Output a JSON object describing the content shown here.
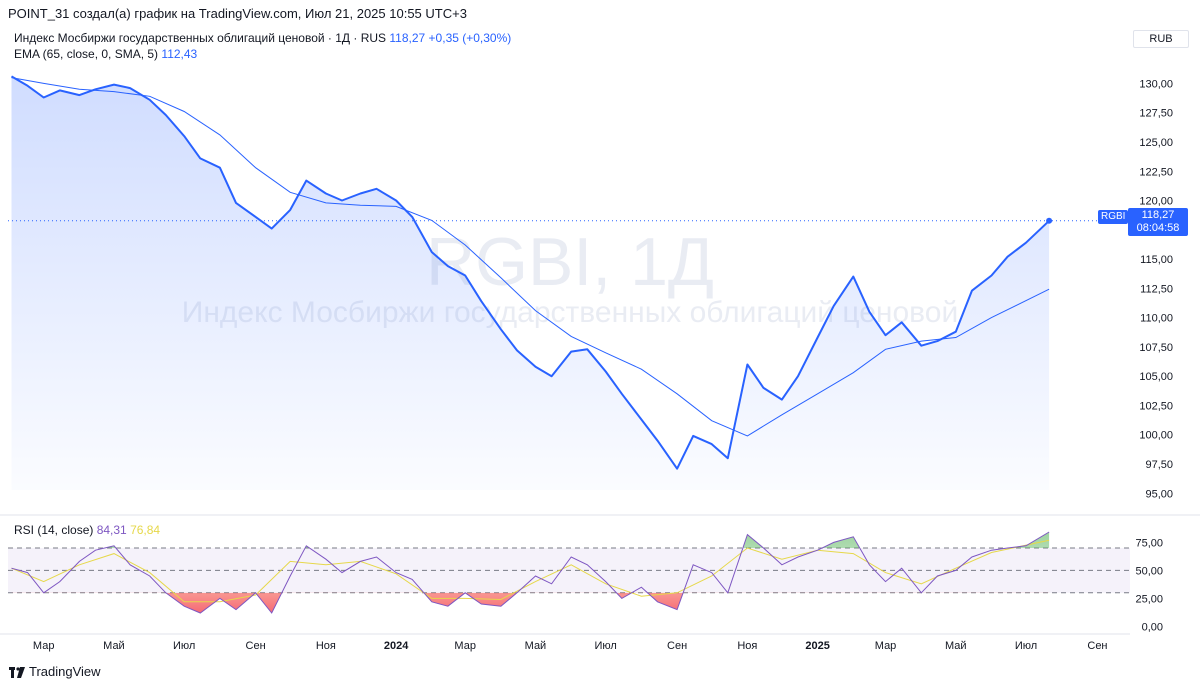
{
  "header": {
    "attribution": "POINT_31 создал(а) график на TradingView.com, Июл 21, 2025 10:55 UTC+3"
  },
  "legend": {
    "symbol_desc": "Индекс Мосбиржи государственных облигаций ценовой · 1Д · RUS",
    "last": "118,27",
    "change": "+0,35 (+0,30%)",
    "ema_label": "EMA (65, close, 0, SMA, 5)",
    "ema_value": "112,43",
    "rsi_label": "RSI (14, close)",
    "rsi_value": "84,31",
    "rsi_ma_value": "76,84"
  },
  "currency": "RUB",
  "price_label": {
    "symbol": "RGBI",
    "price": "118,27",
    "countdown": "08:04:58"
  },
  "watermark": {
    "symbol": "RGBI, 1Д",
    "name": "Индекс Мосбиржи государственных облигаций ценовой"
  },
  "footer": {
    "brand": "TradingView"
  },
  "colors": {
    "price_line": "#2962ff",
    "ema_line": "#2962ff",
    "rsi_line": "#7e57c2",
    "rsi_ma": "#e6d84a",
    "area_fill": "#dbe6ff"
  },
  "chart_data": [
    {
      "type": "area",
      "series": [
        {
          "name": "RGBI",
          "x": [
            "2023-02-01",
            "2023-02-15",
            "2023-03-01",
            "2023-03-15",
            "2023-04-01",
            "2023-04-15",
            "2023-05-01",
            "2023-05-15",
            "2023-06-01",
            "2023-06-15",
            "2023-07-01",
            "2023-07-15",
            "2023-08-01",
            "2023-08-15",
            "2023-09-01",
            "2023-09-15",
            "2023-10-01",
            "2023-10-15",
            "2023-11-01",
            "2023-11-15",
            "2023-12-01",
            "2023-12-15",
            "2024-01-01",
            "2024-01-15",
            "2024-02-01",
            "2024-02-15",
            "2024-03-01",
            "2024-03-15",
            "2024-04-01",
            "2024-04-15",
            "2024-05-01",
            "2024-05-15",
            "2024-06-01",
            "2024-06-15",
            "2024-07-01",
            "2024-07-15",
            "2024-08-01",
            "2024-08-15",
            "2024-09-01",
            "2024-09-15",
            "2024-10-01",
            "2024-10-15",
            "2024-11-01",
            "2024-11-15",
            "2024-12-01",
            "2024-12-15",
            "2025-01-01",
            "2025-01-15",
            "2025-02-01",
            "2025-02-15",
            "2025-03-01",
            "2025-03-15",
            "2025-04-01",
            "2025-04-15",
            "2025-05-01",
            "2025-05-15",
            "2025-06-01",
            "2025-06-15",
            "2025-07-01",
            "2025-07-21"
          ],
          "values": [
            130.6,
            129.8,
            128.8,
            129.4,
            129.0,
            129.5,
            129.9,
            129.6,
            128.6,
            127.3,
            125.5,
            123.6,
            122.8,
            119.8,
            118.6,
            117.6,
            119.2,
            121.7,
            120.6,
            120.0,
            120.6,
            121.0,
            120.0,
            118.6,
            115.6,
            114.4,
            113.6,
            111.4,
            109.0,
            107.2,
            105.8,
            105.0,
            107.1,
            107.3,
            105.4,
            103.5,
            101.3,
            99.5,
            97.1,
            99.9,
            99.2,
            98.0,
            106.0,
            104.0,
            103.0,
            105.0,
            108.3,
            111.0,
            113.5,
            110.5,
            108.5,
            109.6,
            107.6,
            108.0,
            108.8,
            112.3,
            113.6,
            115.2,
            116.4,
            118.27
          ]
        },
        {
          "name": "EMA",
          "x": [
            "2023-02-01",
            "2023-03-01",
            "2023-04-01",
            "2023-05-01",
            "2023-06-01",
            "2023-07-01",
            "2023-08-01",
            "2023-09-01",
            "2023-10-01",
            "2023-11-01",
            "2023-12-01",
            "2024-01-01",
            "2024-02-01",
            "2024-03-01",
            "2024-04-01",
            "2024-05-01",
            "2024-06-01",
            "2024-07-01",
            "2024-08-01",
            "2024-09-01",
            "2024-10-01",
            "2024-11-01",
            "2024-12-01",
            "2025-01-01",
            "2025-02-01",
            "2025-03-01",
            "2025-04-01",
            "2025-05-01",
            "2025-06-01",
            "2025-07-21"
          ],
          "values": [
            130.5,
            130.0,
            129.5,
            129.3,
            128.9,
            127.6,
            125.6,
            122.8,
            120.7,
            119.8,
            119.6,
            119.5,
            118.3,
            116.2,
            113.4,
            110.6,
            108.4,
            107.0,
            105.6,
            103.5,
            101.2,
            99.9,
            101.7,
            103.5,
            105.3,
            107.3,
            108.0,
            108.3,
            110.0,
            112.43
          ]
        }
      ],
      "ylim": [
        94,
        132
      ],
      "y_ticks": [
        "95,00",
        "97,50",
        "100,00",
        "102,50",
        "105,00",
        "107,50",
        "110,00",
        "112,50",
        "115,00",
        "117,50",
        "120,00",
        "122,50",
        "125,00",
        "127,50",
        "130,00"
      ],
      "grid": false
    },
    {
      "type": "line",
      "series": [
        {
          "name": "RSI",
          "x": [
            "2023-02-01",
            "2023-02-15",
            "2023-03-01",
            "2023-03-15",
            "2023-04-01",
            "2023-04-15",
            "2023-05-01",
            "2023-05-15",
            "2023-06-01",
            "2023-06-15",
            "2023-07-01",
            "2023-07-15",
            "2023-08-01",
            "2023-08-15",
            "2023-09-01",
            "2023-09-15",
            "2023-10-01",
            "2023-10-15",
            "2023-11-01",
            "2023-11-15",
            "2023-12-01",
            "2023-12-15",
            "2024-01-01",
            "2024-01-15",
            "2024-02-01",
            "2024-02-15",
            "2024-03-01",
            "2024-03-15",
            "2024-04-01",
            "2024-04-15",
            "2024-05-01",
            "2024-05-15",
            "2024-06-01",
            "2024-06-15",
            "2024-07-01",
            "2024-07-15",
            "2024-08-01",
            "2024-08-15",
            "2024-09-01",
            "2024-09-15",
            "2024-10-01",
            "2024-10-15",
            "2024-11-01",
            "2024-11-15",
            "2024-12-01",
            "2024-12-15",
            "2025-01-01",
            "2025-01-15",
            "2025-02-01",
            "2025-02-15",
            "2025-03-01",
            "2025-03-15",
            "2025-04-01",
            "2025-04-15",
            "2025-05-01",
            "2025-05-15",
            "2025-06-01",
            "2025-06-15",
            "2025-07-01",
            "2025-07-21"
          ],
          "values": [
            52,
            48,
            30,
            40,
            58,
            68,
            72,
            55,
            45,
            30,
            18,
            12,
            25,
            15,
            30,
            12,
            45,
            72,
            60,
            48,
            58,
            62,
            48,
            42,
            22,
            18,
            30,
            20,
            18,
            30,
            45,
            38,
            62,
            55,
            40,
            25,
            35,
            22,
            15,
            55,
            48,
            30,
            82,
            70,
            55,
            62,
            68,
            75,
            80,
            55,
            40,
            52,
            30,
            45,
            50,
            62,
            68,
            70,
            72,
            84.31
          ]
        },
        {
          "name": "RSI MA",
          "x": [
            "2023-02-01",
            "2023-03-01",
            "2023-04-01",
            "2023-05-01",
            "2023-06-01",
            "2023-07-01",
            "2023-08-01",
            "2023-09-01",
            "2023-10-01",
            "2023-11-01",
            "2023-12-01",
            "2024-01-01",
            "2024-02-01",
            "2024-03-01",
            "2024-04-01",
            "2024-05-01",
            "2024-06-01",
            "2024-07-01",
            "2024-08-01",
            "2024-09-01",
            "2024-10-01",
            "2024-11-01",
            "2024-12-01",
            "2025-01-01",
            "2025-02-01",
            "2025-03-01",
            "2025-04-01",
            "2025-05-01",
            "2025-06-01",
            "2025-07-21"
          ],
          "values": [
            52,
            40,
            55,
            65,
            48,
            22,
            22,
            28,
            58,
            55,
            58,
            47,
            25,
            25,
            24,
            40,
            55,
            38,
            27,
            30,
            45,
            70,
            60,
            68,
            65,
            48,
            38,
            52,
            66,
            76.84
          ]
        }
      ],
      "ylim": [
        -5,
        95
      ],
      "y_ticks": [
        "0,00",
        "25,00",
        "50,00",
        "75,00"
      ],
      "bands": {
        "upper": 70,
        "middle": 50,
        "lower": 30
      },
      "grid": false
    }
  ],
  "x_axis": {
    "labels": [
      {
        "date": "2023-03-01",
        "text": "Мар",
        "bold": false
      },
      {
        "date": "2023-05-01",
        "text": "Май",
        "bold": false
      },
      {
        "date": "2023-07-01",
        "text": "Июл",
        "bold": false
      },
      {
        "date": "2023-09-01",
        "text": "Сен",
        "bold": false
      },
      {
        "date": "2023-11-01",
        "text": "Ноя",
        "bold": false
      },
      {
        "date": "2024-01-01",
        "text": "2024",
        "bold": true
      },
      {
        "date": "2024-03-01",
        "text": "Мар",
        "bold": false
      },
      {
        "date": "2024-05-01",
        "text": "Май",
        "bold": false
      },
      {
        "date": "2024-07-01",
        "text": "Июл",
        "bold": false
      },
      {
        "date": "2024-09-01",
        "text": "Сен",
        "bold": false
      },
      {
        "date": "2024-11-01",
        "text": "Ноя",
        "bold": false
      },
      {
        "date": "2025-01-01",
        "text": "2025",
        "bold": true
      },
      {
        "date": "2025-03-01",
        "text": "Мар",
        "bold": false
      },
      {
        "date": "2025-05-01",
        "text": "Май",
        "bold": false
      },
      {
        "date": "2025-07-01",
        "text": "Июл",
        "bold": false
      },
      {
        "date": "2025-09-01",
        "text": "Сен",
        "bold": false
      }
    ]
  }
}
